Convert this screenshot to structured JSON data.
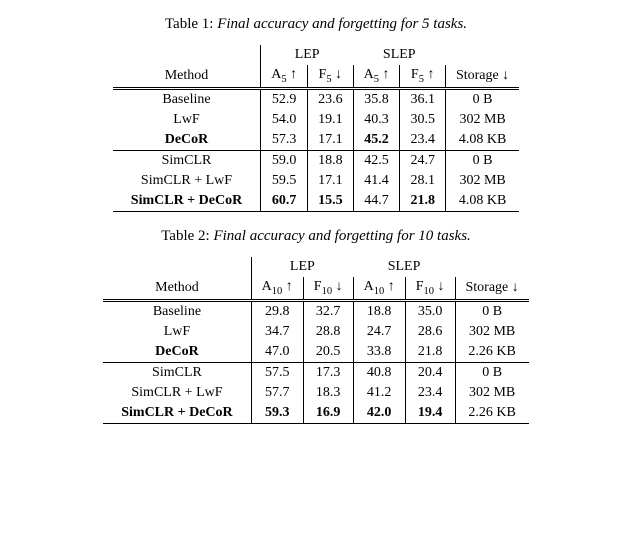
{
  "table1": {
    "caption_label": "Table 1:",
    "caption_text": " Final accuracy and forgetting for 5 tasks.",
    "group1": "LEP",
    "group2": "SLEP",
    "method_header": "Method",
    "a_label": "A",
    "f_label": "F",
    "a_sub": "5",
    "f_sub": "5",
    "up": "↑",
    "down": "↓",
    "storage_header": "Storage ↓",
    "rows": [
      {
        "method": "Baseline",
        "lep_a": "52.9",
        "lep_f": "23.6",
        "slep_a": "35.8",
        "slep_f": "36.1",
        "storage": "0 B",
        "bold": {
          "method": false,
          "lep_a": false,
          "lep_f": false,
          "slep_a": false,
          "slep_f": false
        }
      },
      {
        "method": "LwF",
        "lep_a": "54.0",
        "lep_f": "19.1",
        "slep_a": "40.3",
        "slep_f": "30.5",
        "storage": "302 MB",
        "bold": {
          "method": false,
          "lep_a": false,
          "lep_f": false,
          "slep_a": false,
          "slep_f": false
        }
      },
      {
        "method": "DeCoR",
        "lep_a": "57.3",
        "lep_f": "17.1",
        "slep_a": "45.2",
        "slep_f": "23.4",
        "storage": "4.08 KB",
        "bold": {
          "method": true,
          "lep_a": false,
          "lep_f": false,
          "slep_a": true,
          "slep_f": false
        }
      },
      {
        "method": "SimCLR",
        "lep_a": "59.0",
        "lep_f": "18.8",
        "slep_a": "42.5",
        "slep_f": "24.7",
        "storage": "0 B",
        "bold": {
          "method": false,
          "lep_a": false,
          "lep_f": false,
          "slep_a": false,
          "slep_f": false
        }
      },
      {
        "method": "SimCLR + LwF",
        "lep_a": "59.5",
        "lep_f": "17.1",
        "slep_a": "41.4",
        "slep_f": "28.1",
        "storage": "302 MB",
        "bold": {
          "method": false,
          "lep_a": false,
          "lep_f": false,
          "slep_a": false,
          "slep_f": false
        }
      },
      {
        "method": "SimCLR + DeCoR",
        "lep_a": "60.7",
        "lep_f": "15.5",
        "slep_a": "44.7",
        "slep_f": "21.8",
        "storage": "4.08 KB",
        "bold": {
          "method": true,
          "lep_a": true,
          "lep_f": true,
          "slep_a": false,
          "slep_f": true
        }
      }
    ]
  },
  "table2": {
    "caption_label": "Table 2:",
    "caption_text": " Final accuracy and forgetting for 10 tasks.",
    "group1": "LEP",
    "group2": "SLEP",
    "method_header": "Method",
    "a_label": "A",
    "f_label": "F",
    "a_sub": "10",
    "f_sub": "10",
    "up": "↑",
    "down": "↓",
    "storage_header": "Storage ↓",
    "rows": [
      {
        "method": "Baseline",
        "lep_a": "29.8",
        "lep_f": "32.7",
        "slep_a": "18.8",
        "slep_f": "35.0",
        "storage": "0 B",
        "bold": {
          "method": false,
          "lep_a": false,
          "lep_f": false,
          "slep_a": false,
          "slep_f": false
        }
      },
      {
        "method": "LwF",
        "lep_a": "34.7",
        "lep_f": "28.8",
        "slep_a": "24.7",
        "slep_f": "28.6",
        "storage": "302 MB",
        "bold": {
          "method": false,
          "lep_a": false,
          "lep_f": false,
          "slep_a": false,
          "slep_f": false
        }
      },
      {
        "method": "DeCoR",
        "lep_a": "47.0",
        "lep_f": "20.5",
        "slep_a": "33.8",
        "slep_f": "21.8",
        "storage": "2.26 KB",
        "bold": {
          "method": true,
          "lep_a": false,
          "lep_f": false,
          "slep_a": false,
          "slep_f": false
        }
      },
      {
        "method": "SimCLR",
        "lep_a": "57.5",
        "lep_f": "17.3",
        "slep_a": "40.8",
        "slep_f": "20.4",
        "storage": "0 B",
        "bold": {
          "method": false,
          "lep_a": false,
          "lep_f": false,
          "slep_a": false,
          "slep_f": false
        }
      },
      {
        "method": "SimCLR + LwF",
        "lep_a": "57.7",
        "lep_f": "18.3",
        "slep_a": "41.2",
        "slep_f": "23.4",
        "storage": "302 MB",
        "bold": {
          "method": false,
          "lep_a": false,
          "lep_f": false,
          "slep_a": false,
          "slep_f": false
        }
      },
      {
        "method": "SimCLR + DeCoR",
        "lep_a": "59.3",
        "lep_f": "16.9",
        "slep_a": "42.0",
        "slep_f": "19.4",
        "storage": "2.26 KB",
        "bold": {
          "method": true,
          "lep_a": true,
          "lep_f": true,
          "slep_a": true,
          "slep_f": true
        }
      }
    ]
  }
}
